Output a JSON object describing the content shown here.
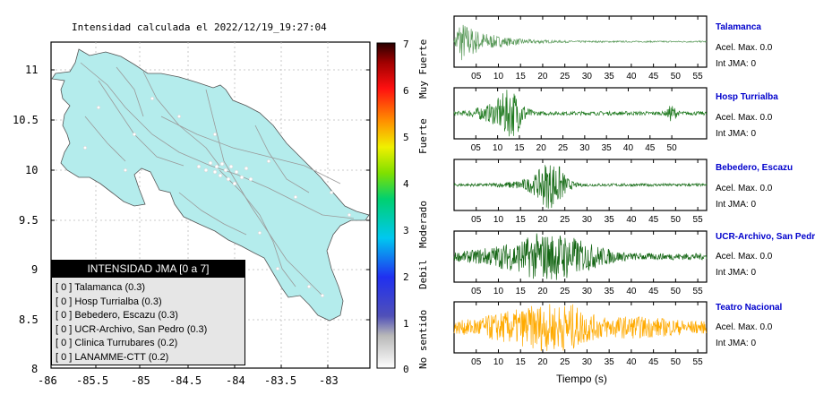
{
  "map": {
    "title": "Intensidad calculada el 2022/12/19_19:27:04",
    "lat_labels": [
      "11",
      "10.5",
      "10",
      "9.5",
      "9",
      "8.5",
      "8"
    ],
    "lon_labels": [
      "-86",
      "-85.5",
      "-85",
      "-84.5",
      "-84",
      "-83.5",
      "-83"
    ],
    "land_color": "#b4ecec",
    "legend": {
      "header": "INTENSIDAD JMA [0 a 7]",
      "items": [
        "[ 0 ]  Talamanca (0.3)",
        "[ 0 ]  Hosp Turrialba (0.3)",
        "[ 0 ]  Bebedero, Escazu (0.3)",
        "[ 0 ]  UCR-Archivo, San Pedro (0.3)",
        "[ 0 ]  Clinica Turrubares (0.2)",
        "[ 0 ]  LANAMME-CTT (0.2)"
      ]
    }
  },
  "colorbar": {
    "ticks": [
      "7",
      "6",
      "5",
      "4",
      "3",
      "2",
      "1",
      "0"
    ],
    "categories": [
      "Muy Fuerte",
      "Fuerte",
      "Moderado",
      "Debil",
      "No sentido"
    ]
  },
  "traces": {
    "x_title": "Tiempo (s)",
    "tick_labels_55": [
      "05",
      "10",
      "15",
      "20",
      "25",
      "30",
      "35",
      "40",
      "45",
      "50",
      "55"
    ],
    "tick_labels_50": [
      "05",
      "10",
      "15",
      "20",
      "25",
      "30",
      "35",
      "40",
      "45",
      "50"
    ],
    "stations": [
      {
        "name": "Talamanca",
        "acel": "Acel. Max. 0.0",
        "jma": "Int JMA: 0",
        "color": "#5a9a5a"
      },
      {
        "name": "Hosp Turrialba",
        "acel": "Acel. Max. 0.0",
        "jma": "Int JMA: 0",
        "color": "#1f7a1f"
      },
      {
        "name": "Bebedero, Escazu",
        "acel": "Acel. Max. 0.0",
        "jma": "Int JMA: 0",
        "color": "#1a6e1a"
      },
      {
        "name": "UCR-Archivo, San Pedro",
        "acel": "Acel. Max. 0.0",
        "jma": "Int JMA: 0",
        "color": "#146614"
      },
      {
        "name": "Teatro Nacional",
        "acel": "Acel. Max. 0.0",
        "jma": "Int JMA: 0",
        "color": "#ffaa00"
      }
    ]
  }
}
